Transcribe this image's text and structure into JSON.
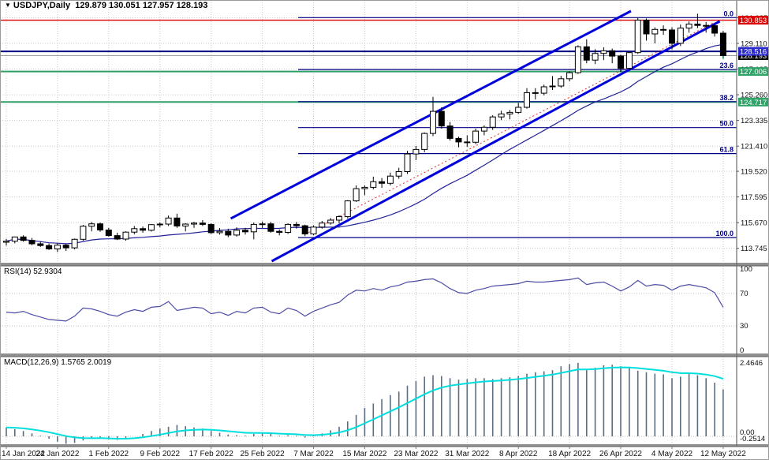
{
  "app": {
    "title_symbol": "USDJPY,Daily",
    "title_ohlc": "129.879 130.051 127.957 128.193",
    "open": "129.879",
    "high": "130.051",
    "low": "127.957",
    "close": "128.193"
  },
  "colors": {
    "background": "#ffffff",
    "grid": "#c9c9c9",
    "candle_up_fill": "#ffffff",
    "candle_down_fill": "#000000",
    "candle_outline": "#000000",
    "ma_line": "#22229a",
    "channel_line": "#0000dd",
    "median_line": "#e03030",
    "red_hline": "#dd0000",
    "navy_hline": "#000086",
    "green_hline": "#2e9e66",
    "fib_line": "#000086",
    "current_price_line": "#9aa0a6",
    "rsi_line": "#4d4da6",
    "macd_bar": "#5c6d82",
    "macd_signal": "#00dede",
    "separator": "#8f8f8f",
    "axis_border": "#6a6a6a",
    "badge_red": "#dd0000",
    "badge_blue": "#2a2ad0",
    "badge_black": "#000000",
    "badge_green": "#2fa368"
  },
  "price_axis": {
    "ticks": [
      {
        "text": "131.035",
        "value": 131.035
      },
      {
        "text": "129.110",
        "value": 129.11
      },
      {
        "text": "127.185",
        "value": 127.185
      },
      {
        "text": "125.260",
        "value": 125.26
      },
      {
        "text": "123.335",
        "value": 123.335
      },
      {
        "text": "121.410",
        "value": 121.41
      },
      {
        "text": "119.520",
        "value": 119.52
      },
      {
        "text": "117.595",
        "value": 117.595
      },
      {
        "text": "115.670",
        "value": 115.67
      },
      {
        "text": "113.745",
        "value": 113.745
      }
    ],
    "badges": [
      {
        "text": "130.853",
        "value": 130.853,
        "color_key": "badge_red"
      },
      {
        "text": "128.193",
        "value": 128.193,
        "color_key": "badge_black"
      },
      {
        "text": "128.516",
        "value": 128.516,
        "color_key": "badge_blue"
      },
      {
        "text": "127.006",
        "value": 127.006,
        "color_key": "badge_green"
      },
      {
        "text": "124.717",
        "value": 124.717,
        "color_key": "badge_green"
      }
    ]
  },
  "rsi_pane": {
    "label": "RSI(14) 52.9304",
    "ticks": [
      {
        "text": "100",
        "value": 100
      },
      {
        "text": "70",
        "value": 70
      },
      {
        "text": "30",
        "value": 30
      },
      {
        "text": "0",
        "value": 0
      }
    ],
    "level_lines": [
      70,
      30
    ]
  },
  "macd_pane": {
    "label": "MACD(12,26,9) 1.5765 2.0019",
    "ticks": [
      {
        "text": "2.4646",
        "value": 2.4646
      },
      {
        "text": "0.00",
        "value": 0
      },
      {
        "text": "-0.2514",
        "value": -0.2514
      }
    ]
  },
  "time_axis": {
    "every_n_bars": 6,
    "labels": [
      "14 Jan 2022",
      "24 Jan 2022",
      "1 Feb 2022",
      "9 Feb 2022",
      "17 Feb 2022",
      "25 Feb 2022",
      "7 Mar 2022",
      "15 Mar 2022",
      "23 Mar 2022",
      "31 Mar 2022",
      "8 Apr 2022",
      "18 Apr 2022",
      "26 Apr 2022",
      "4 May 2022",
      "12 May 2022"
    ]
  },
  "chart_data": {
    "type": "candlestick",
    "symbol": "USDJPY",
    "timeframe": "Daily",
    "title": "USDJPY,Daily 129.879 130.051 127.957 128.193",
    "x_labels": [
      "14 Jan 2022",
      "24 Jan 2022",
      "1 Feb 2022",
      "9 Feb 2022",
      "17 Feb 2022",
      "25 Feb 2022",
      "7 Mar 2022",
      "15 Mar 2022",
      "23 Mar 2022",
      "31 Mar 2022",
      "8 Apr 2022",
      "18 Apr 2022",
      "26 Apr 2022",
      "4 May 2022",
      "12 May 2022"
    ],
    "bars_per_label": 6,
    "ylim": [
      112.66,
      132.37
    ],
    "ohlc": [
      [
        114.2,
        114.45,
        113.95,
        114.28
      ],
      [
        114.28,
        114.62,
        114.12,
        114.6
      ],
      [
        114.6,
        114.72,
        114.25,
        114.34
      ],
      [
        114.34,
        114.52,
        113.98,
        114.08
      ],
      [
        114.08,
        114.25,
        113.85,
        113.95
      ],
      [
        113.95,
        114.1,
        113.62,
        113.7
      ],
      [
        113.7,
        114.12,
        113.47,
        113.98
      ],
      [
        113.98,
        114.08,
        113.55,
        113.78
      ],
      [
        113.78,
        114.48,
        113.66,
        114.42
      ],
      [
        114.42,
        115.5,
        114.32,
        115.4
      ],
      [
        115.4,
        115.72,
        115.02,
        115.58
      ],
      [
        115.58,
        115.68,
        114.98,
        115.12
      ],
      [
        115.12,
        115.28,
        114.62,
        114.7
      ],
      [
        114.7,
        114.92,
        114.36,
        114.44
      ],
      [
        114.44,
        115.02,
        114.32,
        114.96
      ],
      [
        114.96,
        115.42,
        114.8,
        115.22
      ],
      [
        115.22,
        115.38,
        114.92,
        115.1
      ],
      [
        115.1,
        115.56,
        115.0,
        115.52
      ],
      [
        115.52,
        115.7,
        115.32,
        115.56
      ],
      [
        115.56,
        116.2,
        115.42,
        116.02
      ],
      [
        116.02,
        116.34,
        115.28,
        115.42
      ],
      [
        115.42,
        115.62,
        115.02,
        115.56
      ],
      [
        115.56,
        115.72,
        115.28,
        115.64
      ],
      [
        115.64,
        115.86,
        115.42,
        115.54
      ],
      [
        115.54,
        115.62,
        114.82,
        114.92
      ],
      [
        114.92,
        115.26,
        114.78,
        115.02
      ],
      [
        115.02,
        115.22,
        114.58,
        114.74
      ],
      [
        114.74,
        115.32,
        114.62,
        115.1
      ],
      [
        115.1,
        115.28,
        114.78,
        114.98
      ],
      [
        114.98,
        115.68,
        114.42,
        115.54
      ],
      [
        115.54,
        115.76,
        115.28,
        115.58
      ],
      [
        115.58,
        115.72,
        114.92,
        115.02
      ],
      [
        115.02,
        115.16,
        114.72,
        114.94
      ],
      [
        114.94,
        115.62,
        114.82,
        115.54
      ],
      [
        115.54,
        115.72,
        115.22,
        115.44
      ],
      [
        115.44,
        115.52,
        114.66,
        114.82
      ],
      [
        114.82,
        115.46,
        114.72,
        115.34
      ],
      [
        115.34,
        115.8,
        115.22,
        115.64
      ],
      [
        115.64,
        116.02,
        115.52,
        115.86
      ],
      [
        115.86,
        116.22,
        115.62,
        116.12
      ],
      [
        116.12,
        117.36,
        115.98,
        117.3
      ],
      [
        117.3,
        118.46,
        117.22,
        118.22
      ],
      [
        118.22,
        118.46,
        117.72,
        118.32
      ],
      [
        118.32,
        119.12,
        118.16,
        118.74
      ],
      [
        118.74,
        119.02,
        118.28,
        118.62
      ],
      [
        118.62,
        119.42,
        118.46,
        119.16
      ],
      [
        119.16,
        119.78,
        118.96,
        119.5
      ],
      [
        119.5,
        121.05,
        119.32,
        120.82
      ],
      [
        120.82,
        121.42,
        120.36,
        121.16
      ],
      [
        121.16,
        122.44,
        120.96,
        122.36
      ],
      [
        122.36,
        125.1,
        122.16,
        124.02
      ],
      [
        124.02,
        124.32,
        122.72,
        122.92
      ],
      [
        122.92,
        123.22,
        121.82,
        121.99
      ],
      [
        121.99,
        122.12,
        121.32,
        121.72
      ],
      [
        121.72,
        122.22,
        121.36,
        121.7
      ],
      [
        121.7,
        122.72,
        121.56,
        122.54
      ],
      [
        122.54,
        122.96,
        122.22,
        122.82
      ],
      [
        122.82,
        123.72,
        122.62,
        123.6
      ],
      [
        123.6,
        124.06,
        123.36,
        123.82
      ],
      [
        123.82,
        124.12,
        123.42,
        123.94
      ],
      [
        123.94,
        124.66,
        123.82,
        124.32
      ],
      [
        124.32,
        125.76,
        124.22,
        125.42
      ],
      [
        125.42,
        125.76,
        124.92,
        125.38
      ],
      [
        125.38,
        126.02,
        125.22,
        125.86
      ],
      [
        125.86,
        126.66,
        125.62,
        125.92
      ],
      [
        125.92,
        126.68,
        125.78,
        126.46
      ],
      [
        126.46,
        127.02,
        126.26,
        126.92
      ],
      [
        126.92,
        128.97,
        126.82,
        128.86
      ],
      [
        128.86,
        129.42,
        127.62,
        127.86
      ],
      [
        127.86,
        128.68,
        127.56,
        128.36
      ],
      [
        128.36,
        128.82,
        127.86,
        128.56
      ],
      [
        128.56,
        128.72,
        127.62,
        128.16
      ],
      [
        128.16,
        128.26,
        126.96,
        127.24
      ],
      [
        127.24,
        128.52,
        127.12,
        128.42
      ],
      [
        128.42,
        131.02,
        128.32,
        130.86
      ],
      [
        130.86,
        130.98,
        129.32,
        129.82
      ],
      [
        129.82,
        130.32,
        129.12,
        130.16
      ],
      [
        130.16,
        130.46,
        129.76,
        130.12
      ],
      [
        130.12,
        130.32,
        128.66,
        129.12
      ],
      [
        129.12,
        130.52,
        128.92,
        130.26
      ],
      [
        130.26,
        130.76,
        129.92,
        130.56
      ],
      [
        130.56,
        131.34,
        130.26,
        130.46
      ],
      [
        130.46,
        130.72,
        129.92,
        130.44
      ],
      [
        130.44,
        130.56,
        129.62,
        129.88
      ],
      [
        129.879,
        130.051,
        127.957,
        128.193
      ]
    ],
    "hlines": [
      {
        "price": 130.853,
        "color_key": "red_hline",
        "width": 1.4
      },
      {
        "price": 128.516,
        "color_key": "navy_hline",
        "width": 2
      },
      {
        "price": 127.006,
        "color_key": "green_hline",
        "width": 2
      },
      {
        "price": 124.717,
        "color_key": "green_hline",
        "width": 2
      }
    ],
    "current_price": 128.193,
    "fibonacci": {
      "high": 131.05,
      "low": 114.55,
      "draw_from_bar": 34.2,
      "levels": [
        {
          "label": "0.0",
          "value": 131.05
        },
        {
          "label": "23.6",
          "value": 127.156
        },
        {
          "label": "38.2",
          "value": 124.747
        },
        {
          "label": "50.0",
          "value": 122.8
        },
        {
          "label": "61.8",
          "value": 120.853
        },
        {
          "label": "100.0",
          "value": 114.55
        }
      ]
    },
    "trendlines": [
      {
        "name": "channel-lower",
        "bar1": 31.1,
        "price1": 112.78,
        "bar2": 83.6,
        "price2": 130.77,
        "color_key": "channel_line",
        "width": 3,
        "dash": ""
      },
      {
        "name": "channel-upper",
        "bar1": 26.3,
        "price1": 115.98,
        "bar2": 73.2,
        "price2": 131.54,
        "color_key": "channel_line",
        "width": 3,
        "dash": ""
      },
      {
        "name": "channel-median",
        "bar1": 35.0,
        "price1": 114.79,
        "bar2": 83.0,
        "price2": 130.71,
        "color_key": "median_line",
        "width": 1,
        "dash": "2 3"
      }
    ],
    "moving_average": {
      "period": 20
    },
    "rsi": {
      "period": 14,
      "current": 52.9304,
      "range": [
        0,
        100
      ],
      "level_lines": [
        70,
        30
      ],
      "values": [
        47,
        46,
        48,
        44,
        41,
        38,
        37,
        36,
        42,
        52,
        51,
        48,
        44,
        42,
        47,
        50,
        48,
        53,
        54,
        60,
        49,
        51,
        53,
        52,
        45,
        47,
        43,
        48,
        46,
        52,
        53,
        47,
        45,
        52,
        49,
        42,
        48,
        52,
        56,
        59,
        68,
        74,
        73,
        76,
        74,
        78,
        80,
        84,
        85,
        87,
        88,
        83,
        76,
        71,
        70,
        74,
        76,
        79,
        80,
        81,
        82,
        85,
        84,
        84,
        85,
        86,
        87,
        89,
        81,
        83,
        84,
        79,
        73,
        78,
        86,
        79,
        81,
        80,
        74,
        79,
        81,
        79,
        77,
        71,
        52.93
      ]
    },
    "macd": {
      "fast": 12,
      "slow": 26,
      "signal_period": 9,
      "current_macd": 1.5765,
      "current_signal": 2.0019,
      "scale_max": 2.4646,
      "scale_min": -0.2514,
      "values": [
        0.3,
        0.24,
        0.18,
        0.1,
        0.02,
        -0.08,
        -0.18,
        -0.2514,
        -0.22,
        -0.14,
        -0.08,
        -0.06,
        -0.1,
        -0.12,
        -0.08,
        0.0,
        0.08,
        0.18,
        0.26,
        0.32,
        0.38,
        0.34,
        0.3,
        0.26,
        0.18,
        0.12,
        0.06,
        0.04,
        0.02,
        0.08,
        0.12,
        0.08,
        0.02,
        0.04,
        0.02,
        -0.04,
        0.02,
        0.1,
        0.2,
        0.32,
        0.5,
        0.72,
        0.95,
        1.1,
        1.25,
        1.38,
        1.5,
        1.7,
        1.85,
        2.0,
        2.05,
        2.02,
        1.95,
        1.9,
        1.92,
        1.95,
        1.95,
        1.92,
        1.95,
        1.98,
        2.02,
        2.1,
        2.15,
        2.18,
        2.22,
        2.35,
        2.42,
        2.4646,
        2.25,
        2.3,
        2.38,
        2.4,
        2.35,
        2.3,
        2.2,
        2.15,
        2.1,
        2.08,
        1.95,
        2.0,
        2.1,
        2.05,
        1.95,
        1.8,
        1.5765
      ]
    }
  }
}
